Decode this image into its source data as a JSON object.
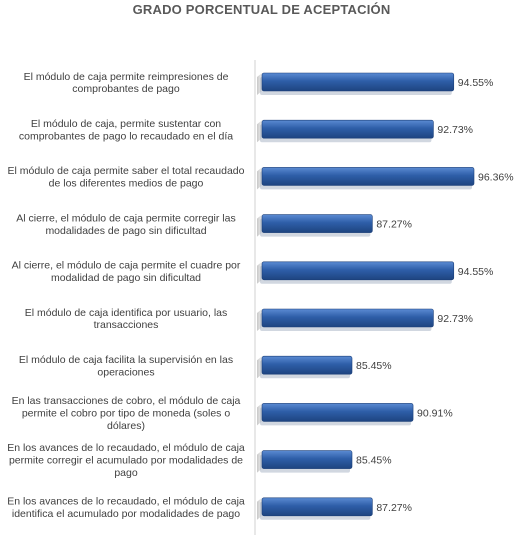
{
  "chart_data": {
    "type": "bar",
    "orientation": "horizontal",
    "title": "GRADO PORCENTUAL DE ACEPTACIÓN",
    "xlabel": "",
    "ylabel": "",
    "xlim": [
      0,
      100
    ],
    "grid": false,
    "legend": "none",
    "value_suffix": "%",
    "bar_color": "#2E5EA8",
    "bar_color_light": "#4A7CC7",
    "bar_color_dark": "#1F4A8A",
    "categories": [
      [
        "El módulo de caja permite reimpresiones de",
        "comprobantes de pago"
      ],
      [
        "El módulo de caja, permite sustentar con",
        "comprobantes de pago lo recaudado en el día"
      ],
      [
        "El módulo de caja permite saber el total recaudado",
        "de los diferentes medios de pago"
      ],
      [
        "Al cierre, el módulo de caja permite corregir las",
        "modalidades de pago sin dificultad"
      ],
      [
        "Al cierre, el módulo de caja permite el cuadre por",
        "modalidad de pago sin dificultad"
      ],
      [
        "El módulo de caja identifica por usuario, las",
        "transacciones"
      ],
      [
        "El módulo de caja facilita la supervisión en las",
        "operaciones"
      ],
      [
        "En las transacciones de cobro, el módulo de caja",
        "permite el cobro por tipo de moneda (soles o",
        "dólares)"
      ],
      [
        "En los avances de lo recaudado, el módulo de caja",
        "permite corregir el acumulado por modalidades de",
        "pago"
      ],
      [
        "En los avances de lo recaudado, el módulo de caja",
        "identifica el acumulado por modalidades de pago"
      ]
    ],
    "values": [
      94.55,
      92.73,
      96.36,
      87.27,
      94.55,
      92.73,
      85.45,
      90.91,
      85.45,
      87.27
    ],
    "value_labels": [
      "94.55%",
      "92.73%",
      "96.36%",
      "87.27%",
      "94.55%",
      "92.73%",
      "85.45%",
      "90.91%",
      "85.45%",
      "87.27%"
    ]
  }
}
